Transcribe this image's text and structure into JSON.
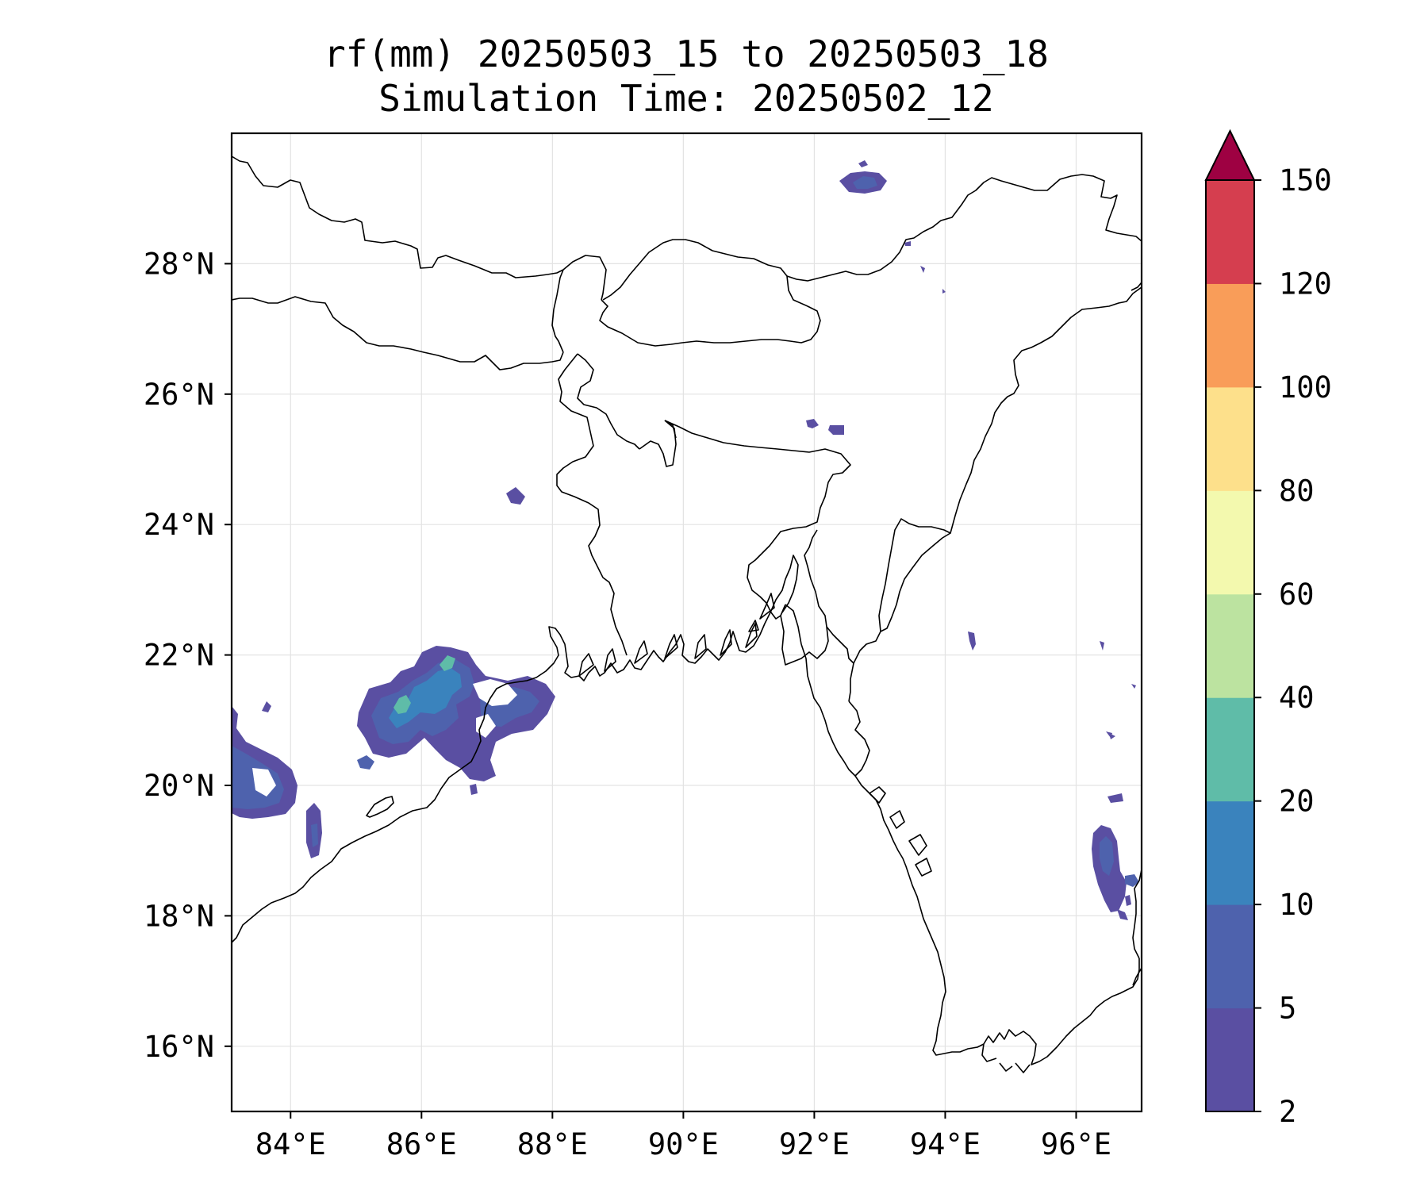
{
  "title": {
    "line1": "rf(mm) 20250503_15 to 20250503_18",
    "line2": "Simulation Time: 20250502_12"
  },
  "map": {
    "lon_range": [
      83.1,
      97.0
    ],
    "lat_range": [
      15.0,
      30.0
    ],
    "gridlines": true,
    "lon_ticks": [
      "84°E",
      "86°E",
      "88°E",
      "90°E",
      "92°E",
      "94°E",
      "96°E"
    ],
    "lon_values": [
      84,
      86,
      88,
      90,
      92,
      94,
      96
    ],
    "lat_ticks": [
      "16°N",
      "18°N",
      "20°N",
      "22°N",
      "24°N",
      "26°N",
      "28°N"
    ],
    "lat_values": [
      16,
      18,
      20,
      22,
      24,
      26,
      28
    ]
  },
  "colorbar": {
    "levels": [
      2,
      5,
      10,
      20,
      40,
      60,
      80,
      100,
      120,
      150
    ],
    "labels": [
      "2",
      "5",
      "10",
      "20",
      "40",
      "60",
      "80",
      "100",
      "120",
      "150"
    ],
    "colors": [
      "#5a4fa2",
      "#4e62ad",
      "#3a83bd",
      "#5fbca8",
      "#bce3a0",
      "#f3f9ae",
      "#fde08b",
      "#f99d59",
      "#d53e4f"
    ],
    "extend_color": "#9e0142",
    "extend": "max"
  }
}
